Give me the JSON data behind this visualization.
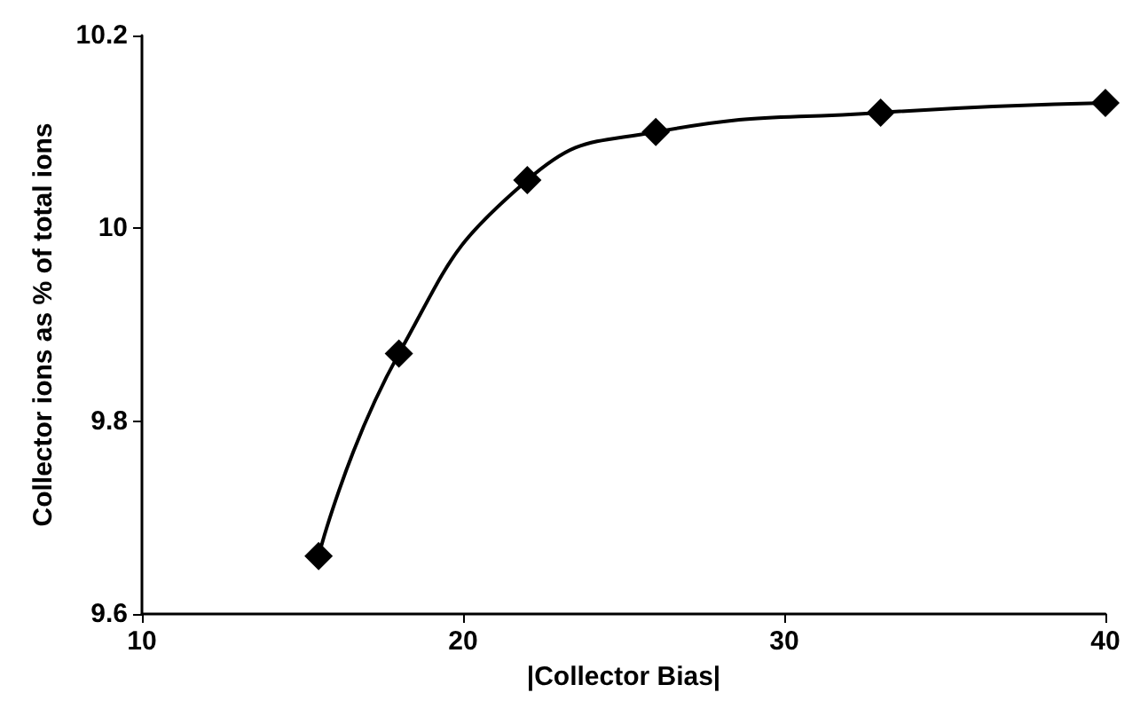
{
  "chart_data": {
    "type": "line",
    "xlabel": "|Collector Bias|",
    "ylabel": "Collector ions as % of total ions",
    "x": [
      15.5,
      18,
      22,
      26,
      33,
      40
    ],
    "series": [
      {
        "color": "#000000",
        "values": [
          9.66,
          9.87,
          10.05,
          10.1,
          10.12,
          10.13
        ]
      }
    ],
    "xlim": [
      10,
      40
    ],
    "xticks": [
      10,
      20,
      30,
      40
    ],
    "ylim": [
      9.6,
      10.2
    ],
    "yticks": [
      9.6,
      9.8,
      10,
      10.2
    ],
    "grid": false,
    "marker": "diamond",
    "line_style": "solid"
  }
}
